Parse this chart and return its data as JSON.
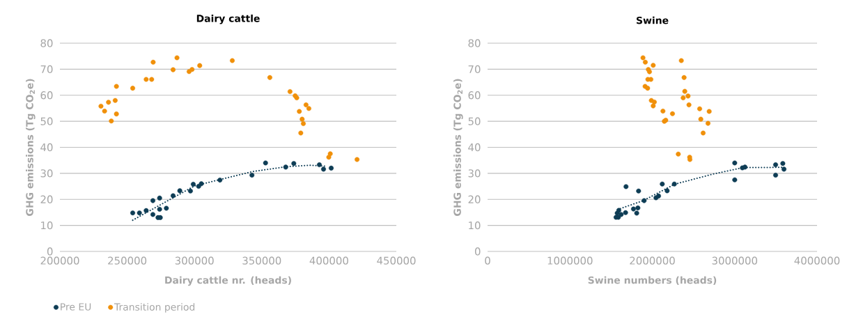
{
  "chart_data": [
    {
      "type": "scatter",
      "title": "Dairy cattle",
      "xlabel": "Dairy cattle nr. (heads)",
      "ylabel": "GHG emissions (Tg CO$_{2}$e)",
      "xlim": [
        200000,
        450000
      ],
      "xticks": [
        200000,
        250000,
        300000,
        350000,
        400000,
        450000
      ],
      "ylim": [
        0,
        80
      ],
      "yticks": [
        0,
        10,
        20,
        30,
        40,
        50,
        60,
        70,
        80
      ],
      "grid": "y",
      "legend": "bottom",
      "series": [
        {
          "name": "Pre EU",
          "color": "#0e3d55",
          "marker": "circle",
          "x": [
            254100,
            259100,
            264100,
            269100,
            274100,
            269100,
            274100,
            272900,
            274600,
            279100,
            284100,
            289100,
            297000,
            299100,
            303100,
            305100,
            318900,
            342700,
            352800,
            367800,
            373800,
            392800,
            395900,
            401600
          ],
          "values": [
            14.8,
            14.8,
            15.7,
            19.5,
            20.5,
            14.2,
            16.2,
            13.0,
            13.0,
            16.6,
            21.4,
            23.3,
            23.2,
            25.8,
            25.0,
            26.0,
            27.4,
            29.3,
            34.0,
            32.4,
            33.8,
            33.3,
            31.6,
            32.0
          ]
        },
        {
          "name": "Transition period",
          "color": "#f0900a",
          "marker": "circle",
          "x": [
            230500,
            233200,
            236100,
            241100,
            242000,
            242000,
            238200,
            254100,
            264100,
            268200,
            269300,
            284100,
            287000,
            296000,
            298200,
            303900,
            328100,
            356000,
            371000,
            374800,
            376000,
            382900,
            385000,
            377900,
            380000,
            380900,
            379000,
            399800,
            400900,
            420800
          ],
          "values": [
            55.8,
            53.9,
            57.3,
            58.0,
            63.4,
            52.8,
            50.1,
            62.7,
            66.1,
            66.1,
            72.7,
            69.8,
            74.4,
            69.1,
            69.9,
            71.4,
            73.3,
            66.8,
            61.4,
            59.8,
            59.0,
            56.3,
            54.9,
            53.8,
            50.8,
            49.1,
            45.5,
            36.2,
            37.5,
            35.3
          ]
        },
        {
          "type": "line",
          "line_style": "dotted",
          "marker": "none",
          "color": "#0e3d55",
          "x": [
            254100,
            274300,
            300100,
            343300,
            369100,
            386400,
            398500
          ],
          "values": [
            12.0,
            17.8,
            25.2,
            30.7,
            32.6,
            33.1,
            32.7
          ]
        }
      ]
    },
    {
      "type": "scatter",
      "title": "Swine",
      "xlabel": "Swine numbers (heads)",
      "ylabel": "GHG emissions (Tg CO$_{2}$e)",
      "xlim": [
        0,
        4000000
      ],
      "xticks": [
        0,
        1000000,
        2000000,
        3000000,
        4000000
      ],
      "ylim": [
        0,
        80
      ],
      "yticks": [
        0,
        10,
        20,
        30,
        40,
        50,
        60,
        70,
        80
      ],
      "grid": "y",
      "series": [
        {
          "color": "#0e3d55",
          "marker": "circle",
          "x": [
            1559500,
            1587700,
            1573600,
            1593300,
            1621600,
            1675100,
            1680700,
            1771000,
            1824600,
            1810400,
            1833000,
            1900700,
            2044500,
            2075500,
            2120600,
            2179900,
            2267300,
            3000500,
            3000500,
            3093500,
            3124500,
            3496800,
            3496800,
            3584200,
            3598300
          ],
          "values": [
            13.1,
            13.1,
            14.7,
            15.8,
            14.2,
            14.9,
            24.9,
            16.3,
            16.7,
            14.7,
            23.2,
            19.5,
            20.6,
            21.3,
            25.9,
            23.3,
            25.9,
            34.0,
            27.5,
            32.1,
            32.4,
            33.3,
            29.3,
            33.8,
            31.6
          ]
        },
        {
          "color": "#f0900a",
          "marker": "circle",
          "x": [
            1886600,
            1914800,
            2010700,
            1951400,
            1965500,
            1945800,
            1982500,
            1912000,
            1943000,
            1988100,
            2024800,
            2010700,
            2128900,
            2244700,
            2146000,
            2162900,
            2351900,
            2385700,
            2394200,
            2433700,
            2374400,
            2444900,
            2574700,
            2690300,
            2588800,
            2676200,
            2617100,
            2315200,
            2453400,
            2456200
          ],
          "values": [
            74.4,
            72.7,
            71.5,
            69.9,
            69.0,
            66.1,
            66.1,
            63.4,
            62.7,
            58.0,
            57.4,
            55.9,
            53.9,
            52.9,
            50.0,
            50.4,
            73.3,
            66.8,
            61.5,
            59.7,
            59.0,
            56.3,
            54.8,
            53.8,
            50.8,
            49.2,
            45.5,
            37.4,
            36.2,
            35.3
          ]
        },
        {
          "type": "line",
          "line_style": "dotted",
          "marker": "none",
          "color": "#0e3d55",
          "x": [
            1579200,
            1889400,
            2270100,
            2735400,
            3102000,
            3581400
          ],
          "values": [
            16.1,
            19.5,
            25.8,
            29.7,
            32.2,
            32.3
          ]
        }
      ]
    }
  ]
}
